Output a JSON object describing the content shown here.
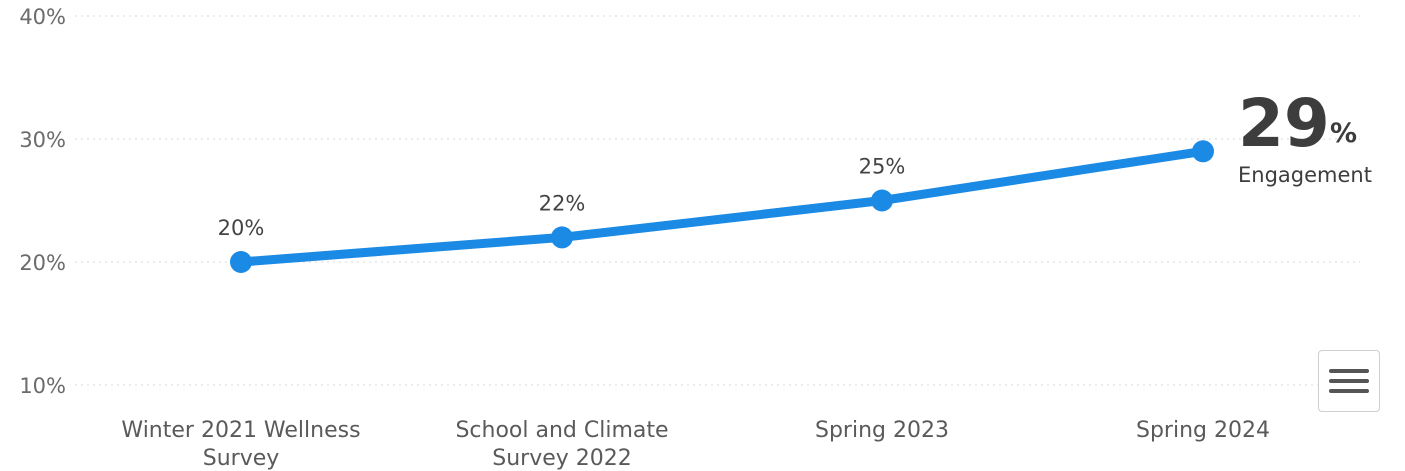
{
  "chart_data": {
    "type": "line",
    "categories": [
      [
        "Winter 2021 Wellness",
        "Survey"
      ],
      [
        "School and Climate",
        "Survey 2022"
      ],
      [
        "Spring 2023"
      ],
      [
        "Spring 2024"
      ]
    ],
    "series": [
      {
        "values": [
          20,
          22,
          25,
          29
        ]
      }
    ],
    "data_labels": [
      "20%",
      "22%",
      "25%",
      ""
    ],
    "y_ticks": [
      {
        "value": 10,
        "label": "10%"
      },
      {
        "value": 20,
        "label": "20%"
      },
      {
        "value": 30,
        "label": "30%"
      },
      {
        "value": 40,
        "label": "40%"
      }
    ],
    "ylim": [
      10,
      40
    ],
    "grid": true,
    "color": "#1a8ae5",
    "highlight": {
      "value": "29",
      "unit": "%",
      "label": "Engagement"
    }
  },
  "menu": {
    "icon": "hamburger-menu-icon"
  }
}
